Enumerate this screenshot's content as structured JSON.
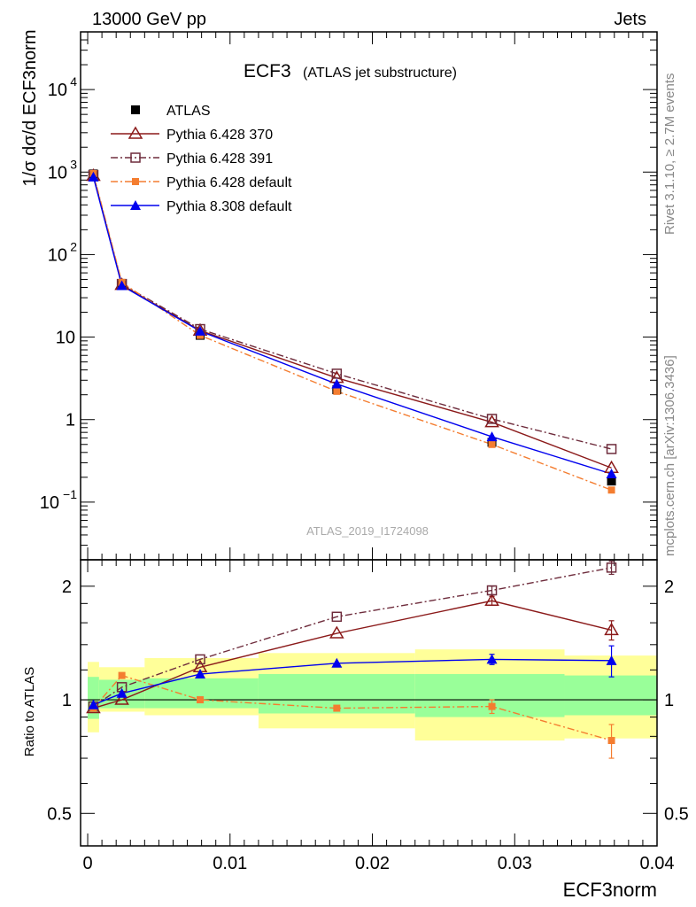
{
  "header": {
    "left": "13000 GeV pp",
    "right": "Jets"
  },
  "side_labels": {
    "rivet": "Rivet 3.1.10, ≥ 2.7M events",
    "mcplots": "mcplots.cern.ch [arXiv:1306.3436]"
  },
  "chart_data": [
    {
      "type": "line",
      "panel": "main",
      "title": "ECF3",
      "subtitle": "(ATLAS jet substructure)",
      "watermark": "ATLAS_2019_I1724098",
      "ylabel": "1/σ dσ/d ECF3norm",
      "yscale": "log",
      "ylim": [
        0.02,
        50000
      ],
      "xlim": [
        -0.0005,
        0.04
      ],
      "yticks_major": [
        {
          "v": 0.1,
          "base": "10",
          "exp": "−1"
        },
        {
          "v": 1,
          "base": "1",
          "exp": ""
        },
        {
          "v": 10,
          "base": "10",
          "exp": ""
        },
        {
          "v": 100,
          "base": "10",
          "exp": "2"
        },
        {
          "v": 1000,
          "base": "10",
          "exp": "3"
        },
        {
          "v": 10000,
          "base": "10",
          "exp": "4"
        }
      ],
      "legend_position": "top-left",
      "x": [
        0.0004,
        0.0024,
        0.0079,
        0.0175,
        0.0284,
        0.0368
      ],
      "series": [
        {
          "name": "ATLAS",
          "color": "#000000",
          "marker": "filled-square",
          "line": "none",
          "values": [
            950,
            43,
            10.5,
            2.3,
            0.53,
            0.18
          ]
        },
        {
          "name": "Pythia 6.428 370",
          "color": "#8b1a1a",
          "marker": "open-triangle",
          "line": "solid",
          "values": [
            900,
            43,
            12.0,
            3.2,
            0.93,
            0.26
          ]
        },
        {
          "name": "Pythia 6.428 391",
          "color": "#6e2c3c",
          "marker": "open-square",
          "line": "dashdot",
          "values": [
            920,
            44,
            12.5,
            3.6,
            1.02,
            0.44
          ]
        },
        {
          "name": "Pythia 6.428 default",
          "color": "#f47d30",
          "marker": "filled-square-small",
          "line": "dashdot",
          "values": [
            960,
            46,
            10.5,
            2.2,
            0.5,
            0.14
          ]
        },
        {
          "name": "Pythia 8.308 default",
          "color": "#0000ee",
          "marker": "filled-triangle",
          "line": "solid",
          "values": [
            870,
            42,
            11.8,
            2.7,
            0.62,
            0.22
          ]
        }
      ]
    },
    {
      "type": "line",
      "panel": "ratio",
      "ylabel": "Ratio to ATLAS",
      "xlabel": "ECF3norm",
      "yscale": "log",
      "ylim": [
        0.41,
        2.35
      ],
      "yticks": [
        0.5,
        1,
        2
      ],
      "ytick_labels": [
        "0.5",
        "1",
        "2"
      ],
      "xticks": [
        0,
        0.01,
        0.02,
        0.03,
        0.04
      ],
      "xtick_labels": [
        "0",
        "0.01",
        "0.02",
        "0.03",
        "0.04"
      ],
      "bins": [
        {
          "lo": 0.0,
          "hi": 0.0008
        },
        {
          "lo": 0.0008,
          "hi": 0.004
        },
        {
          "lo": 0.004,
          "hi": 0.012
        },
        {
          "lo": 0.012,
          "hi": 0.023
        },
        {
          "lo": 0.023,
          "hi": 0.0335
        },
        {
          "lo": 0.0335,
          "hi": 0.04
        }
      ],
      "band_yellow": [
        [
          0.82,
          1.26
        ],
        [
          0.93,
          1.22
        ],
        [
          0.91,
          1.29
        ],
        [
          0.84,
          1.33
        ],
        [
          0.78,
          1.36
        ],
        [
          0.79,
          1.31
        ]
      ],
      "band_green": [
        [
          0.89,
          1.15
        ],
        [
          0.95,
          1.13
        ],
        [
          0.95,
          1.14
        ],
        [
          0.92,
          1.17
        ],
        [
          0.9,
          1.17
        ],
        [
          0.91,
          1.16
        ]
      ],
      "series": [
        {
          "name": "Pythia 6.428 370",
          "values": [
            0.95,
            1.0,
            1.22,
            1.5,
            1.83,
            1.53
          ],
          "err": [
            0,
            0,
            0,
            0,
            0.05,
            0.09
          ]
        },
        {
          "name": "Pythia 6.428 391",
          "values": [
            0.96,
            1.08,
            1.28,
            1.66,
            1.95,
            2.24
          ],
          "err": [
            0,
            0,
            0,
            0,
            0.05,
            0.09
          ]
        },
        {
          "name": "Pythia 6.428 default",
          "values": [
            0.95,
            1.16,
            1.0,
            0.95,
            0.96,
            0.78
          ],
          "err": [
            0,
            0,
            0,
            0,
            0.04,
            0.08
          ]
        },
        {
          "name": "Pythia 8.308 default",
          "values": [
            0.97,
            1.04,
            1.17,
            1.25,
            1.28,
            1.27
          ],
          "err": [
            0,
            0,
            0,
            0,
            0.04,
            0.12
          ]
        }
      ]
    }
  ]
}
